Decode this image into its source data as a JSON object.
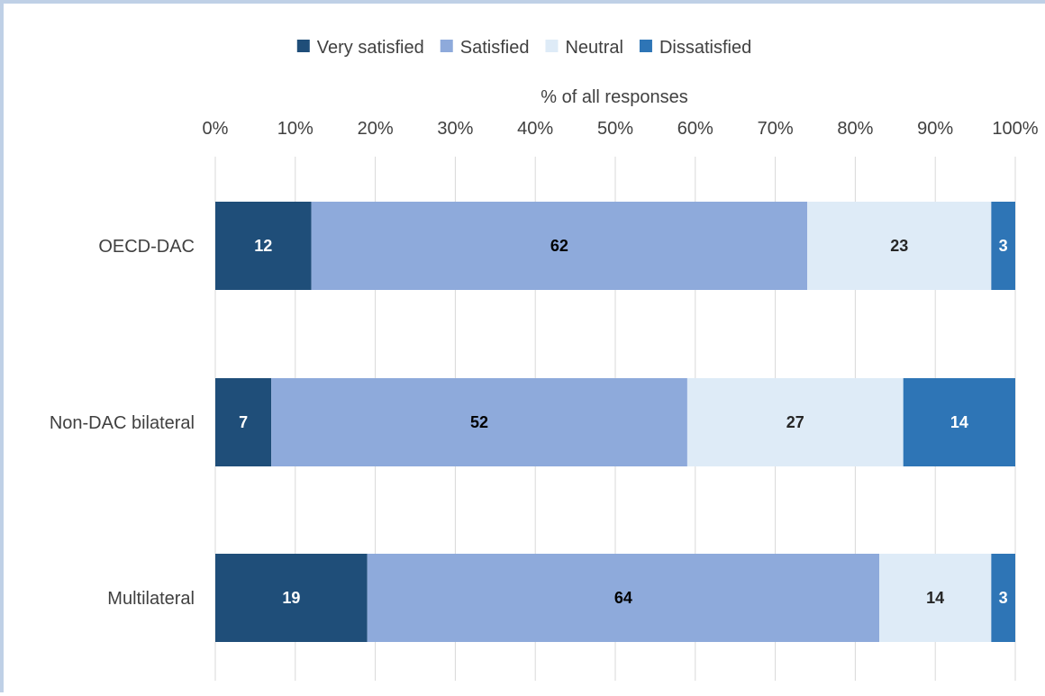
{
  "chart_data": {
    "type": "bar",
    "orientation": "horizontal",
    "stacked": true,
    "xlabel": "% of all responses",
    "xlim": [
      0,
      100
    ],
    "xticks": [
      "0%",
      "10%",
      "20%",
      "30%",
      "40%",
      "50%",
      "60%",
      "70%",
      "80%",
      "90%",
      "100%"
    ],
    "grid": true,
    "legend_position": "top",
    "categories": [
      "OECD-DAC",
      "Non-DAC bilateral",
      "Multilateral"
    ],
    "series": [
      {
        "name": "Very satisfied",
        "color": "#1f4e79",
        "label_color": "#ffffff",
        "values": [
          12,
          7,
          19
        ]
      },
      {
        "name": "Satisfied",
        "color": "#8eaadb",
        "label_color": "#000000",
        "values": [
          62,
          52,
          64
        ]
      },
      {
        "name": "Neutral",
        "color": "#deebf7",
        "label_color": "#262626",
        "values": [
          23,
          27,
          14
        ]
      },
      {
        "name": "Dissatisfied",
        "color": "#2e75b6",
        "label_color": "#ffffff",
        "values": [
          3,
          14,
          3
        ]
      }
    ]
  }
}
